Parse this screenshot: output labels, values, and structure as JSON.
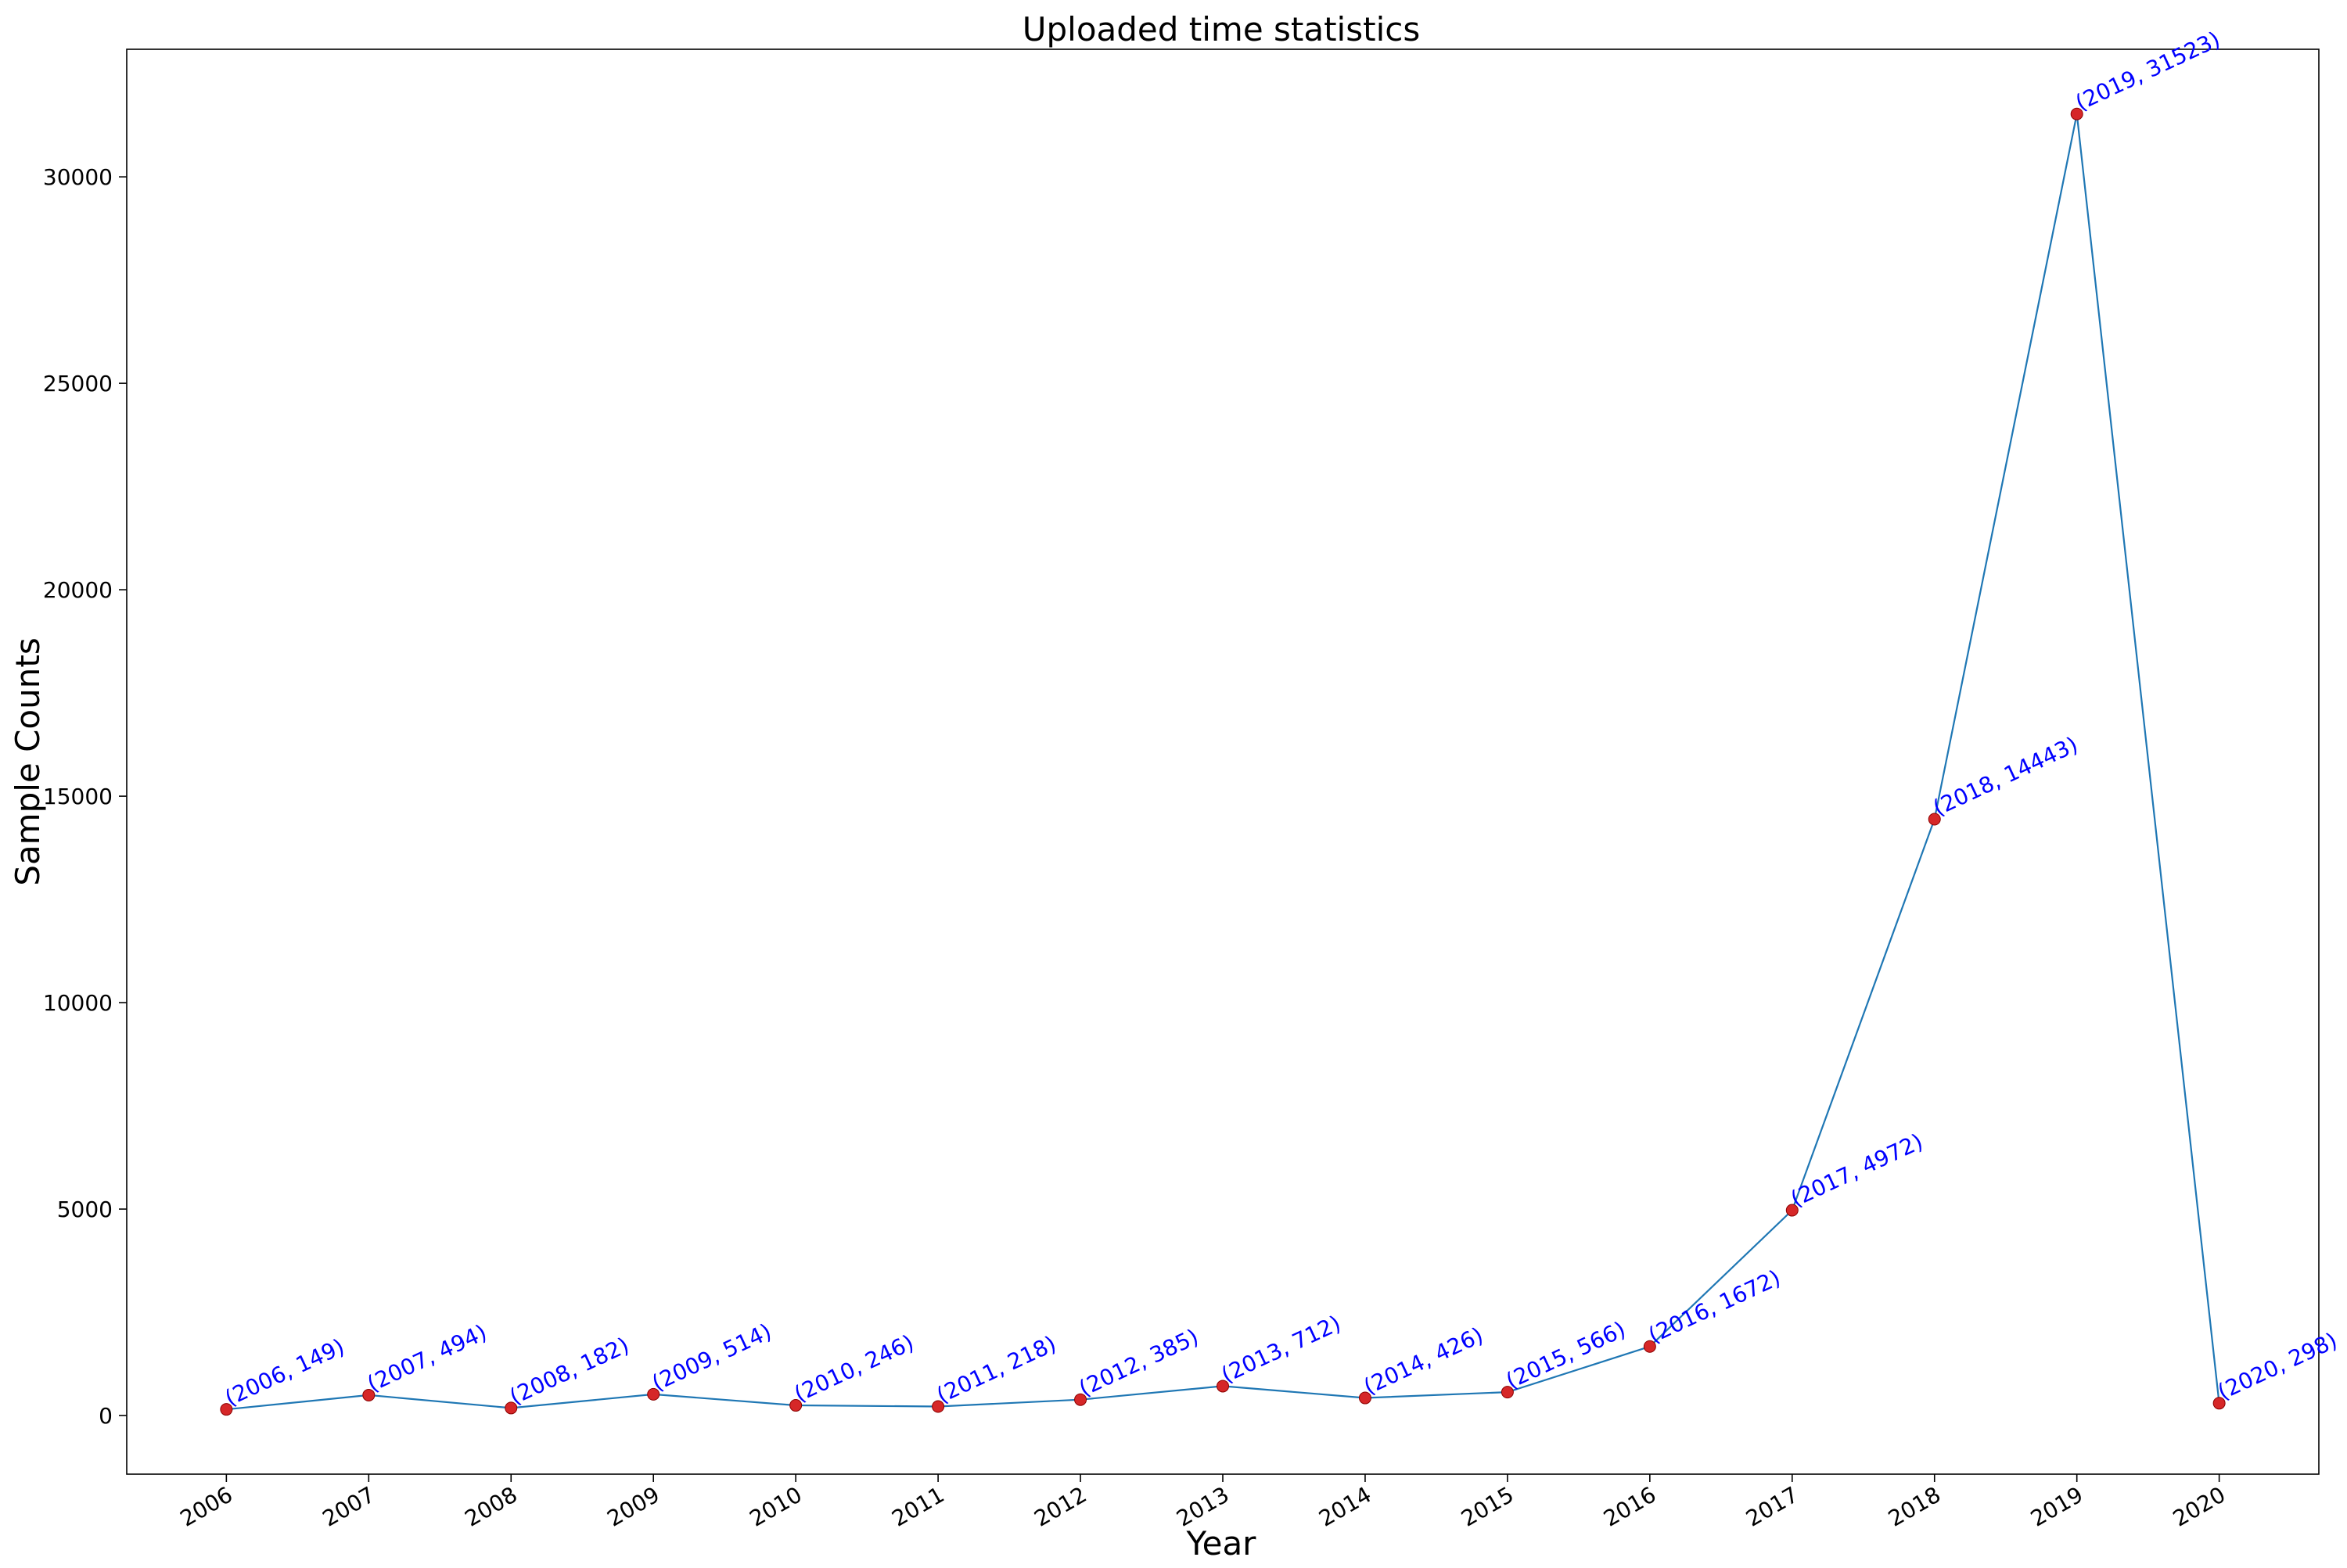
{
  "chart_data": {
    "type": "line",
    "title": "Uploaded time statistics",
    "xlabel": "Year",
    "ylabel": "Sample Counts",
    "x": [
      2006,
      2007,
      2008,
      2009,
      2010,
      2011,
      2012,
      2013,
      2014,
      2015,
      2016,
      2017,
      2018,
      2019,
      2020
    ],
    "values": [
      149,
      494,
      182,
      514,
      246,
      218,
      385,
      712,
      426,
      566,
      1672,
      4972,
      14443,
      31523,
      298
    ],
    "point_labels": [
      "(2006, 149)",
      "(2007, 494)",
      "(2008, 182)",
      "(2009, 514)",
      "(2010, 246)",
      "(2011, 218)",
      "(2012, 385)",
      "(2013, 712)",
      "(2014, 426)",
      "(2015, 566)",
      "(2016, 1672)",
      "(2017, 4972)",
      "(2018, 14443)",
      "(2019, 31523)",
      "(2020, 298)"
    ],
    "x_tick_labels": [
      "2006",
      "2007",
      "2008",
      "2009",
      "2010",
      "2011",
      "2012",
      "2013",
      "2014",
      "2015",
      "2016",
      "2017",
      "2018",
      "2019",
      "2020"
    ],
    "y_ticks": [
      0,
      5000,
      10000,
      15000,
      20000,
      25000,
      30000
    ],
    "y_tick_labels": [
      "0",
      "5000",
      "10000",
      "15000",
      "20000",
      "25000",
      "30000"
    ],
    "xlim": [
      2005.3,
      2020.7
    ],
    "ylim": [
      -1420,
      33090
    ],
    "grid": false,
    "legend": "none",
    "colors": {
      "line": "#1f77b4",
      "marker": "#d62728",
      "point_label": "#0000ff",
      "axis": "#000000"
    }
  }
}
